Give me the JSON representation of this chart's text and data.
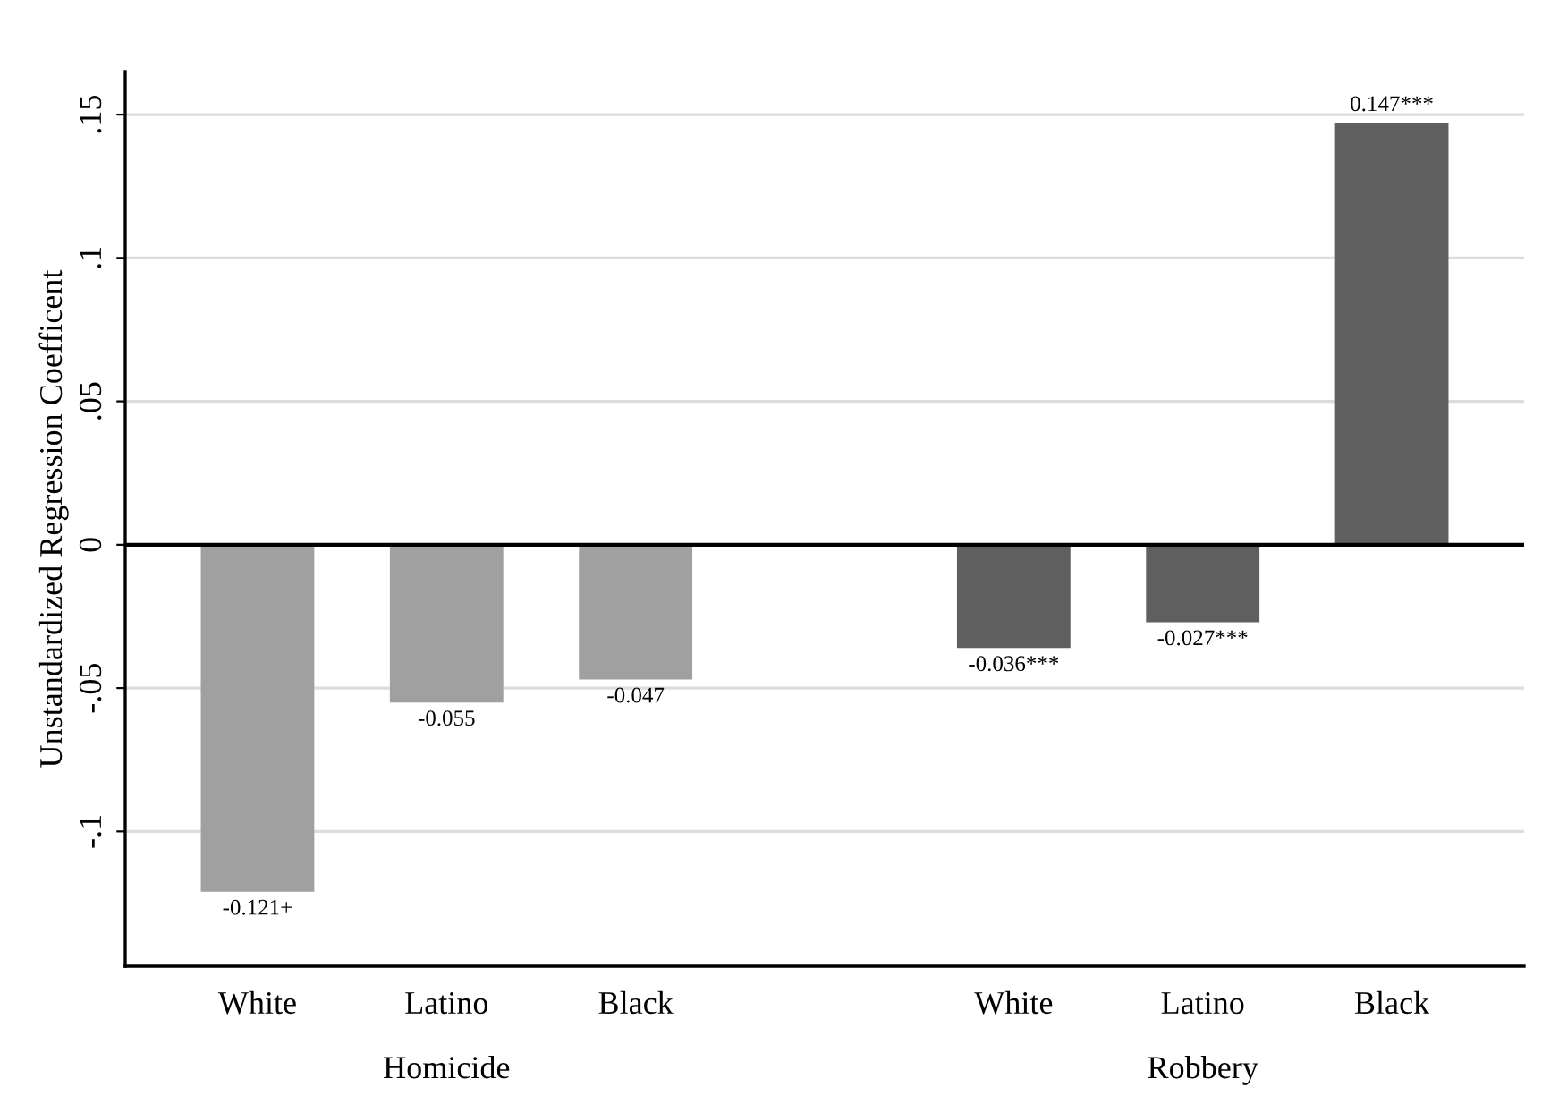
{
  "chart_data": {
    "type": "bar",
    "ylabel": "Unstandardized Regression Coefficent",
    "categories": [
      "White",
      "Latino",
      "Black",
      null,
      "White",
      "Latino",
      "Black"
    ],
    "values": [
      -0.121,
      -0.055,
      -0.047,
      null,
      -0.036,
      -0.027,
      0.147
    ],
    "colors": [
      "#a0a0a0",
      "#a0a0a0",
      "#a0a0a0",
      "#a0a0a0",
      "#5f5f5f",
      "#5f5f5f",
      "#5f5f5f"
    ],
    "value_labels": [
      "-0.121+",
      "-0.055",
      "-0.047",
      null,
      "-0.036***",
      "-0.027***",
      "0.147***"
    ],
    "ylim": [
      -0.147,
      0.165
    ],
    "yticks": [
      {
        "value": -0.1,
        "label": "-.1"
      },
      {
        "value": -0.05,
        "label": "-.05"
      },
      {
        "value": 0,
        "label": "0"
      },
      {
        "value": 0.05,
        "label": ".05"
      },
      {
        "value": 0.1,
        "label": ".1"
      },
      {
        "value": 0.15,
        "label": ".15"
      }
    ],
    "grid": "y",
    "legend": false,
    "ref_lines": [
      {
        "axis": "y",
        "value": 0,
        "color": "#000000"
      }
    ],
    "annotations": [
      "Homicide",
      "Robbery"
    ]
  }
}
